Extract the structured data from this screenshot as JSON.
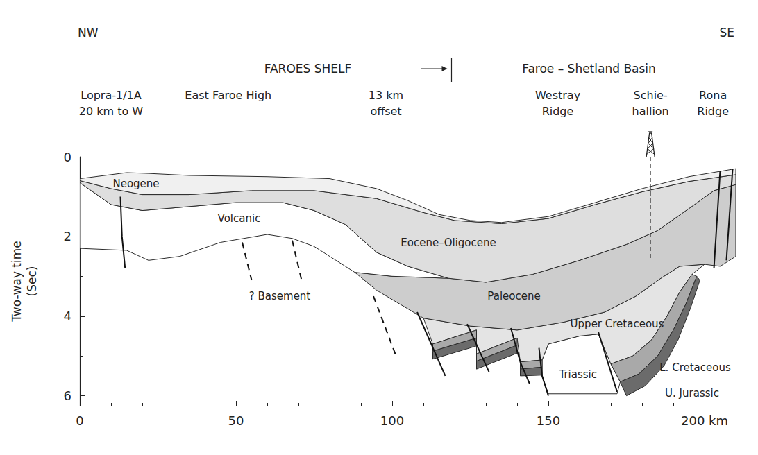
{
  "chart_data": {
    "type": "cross_section",
    "xlim": [
      0,
      210
    ],
    "xticks": [
      0,
      50,
      100,
      150,
      {
        "value": 200,
        "label": "200 km"
      }
    ],
    "ylim": [
      6.25,
      0
    ],
    "yticks": [
      0,
      2,
      4,
      6
    ],
    "ylabel": [
      "Two-way time",
      "(Sec)"
    ],
    "grid": false,
    "header": {
      "left": "NW",
      "right": "SE",
      "boundary": 119,
      "regions": [
        {
          "text": "FAROES SHELF",
          "x": 73
        },
        {
          "text": "Faroe – Shetland Basin",
          "x": 163
        }
      ],
      "localities": [
        {
          "lines": [
            "Lopra-1/1A",
            "20 km to W"
          ],
          "x": 10
        },
        {
          "lines": [
            "East Faroe High"
          ],
          "x": 47.5
        },
        {
          "lines": [
            "13 km",
            "offset"
          ],
          "x": 98
        },
        {
          "lines": [
            "Westray",
            "Ridge"
          ],
          "x": 153
        },
        {
          "lines": [
            "Schie-",
            "hallion"
          ],
          "x": 182.7
        },
        {
          "lines": [
            "Rona",
            "Ridge"
          ],
          "x": 202.7
        }
      ]
    },
    "well": {
      "x": 182.7,
      "base": 2.6
    },
    "units": [
      {
        "name": "? Basement",
        "label": {
          "x": 64,
          "y": 3.5
        },
        "polygons": []
      },
      {
        "name": "Triassic",
        "color": "#ffffff",
        "label": {
          "x": 159.5,
          "y": 5.46
        },
        "polygons": [
          [
            [
              148,
              5.1
            ],
            [
              150,
              4.7
            ],
            [
              160,
              4.5
            ],
            [
              166,
              4.45
            ],
            [
              170,
              5.2
            ],
            [
              173,
              5.65
            ],
            [
              172,
              5.95
            ],
            [
              150,
              5.95
            ],
            [
              148,
              5.5
            ]
          ]
        ]
      },
      {
        "name": "Upper Cretaceous",
        "color": "#e4e4e4",
        "label": {
          "x": 172,
          "y": 4.2
        },
        "polygons": [
          [
            [
              110,
              4.05
            ],
            [
              125,
              4.25
            ],
            [
              140,
              4.35
            ],
            [
              155,
              4.15
            ],
            [
              168,
              3.9
            ],
            [
              178,
              3.5
            ],
            [
              186,
              3.05
            ],
            [
              192,
              2.75
            ],
            [
              200,
              2.7
            ],
            [
              196,
              2.95
            ],
            [
              192,
              3.4
            ],
            [
              188,
              4.0
            ],
            [
              183,
              4.6
            ],
            [
              177,
              5.0
            ],
            [
              170,
              5.2
            ],
            [
              166,
              4.45
            ],
            [
              160,
              4.5
            ],
            [
              150,
              4.7
            ],
            [
              148,
              5.1
            ],
            [
              141,
              5.15
            ],
            [
              140,
              4.55
            ],
            [
              127,
              4.95
            ],
            [
              127,
              4.35
            ],
            [
              113,
              4.7
            ]
          ]
        ]
      },
      {
        "name": "L. Cretaceous",
        "color": "#a9a9a9",
        "label": {
          "x": 197,
          "y": 5.3
        },
        "polygons": [
          [
            [
              113,
              4.7
            ],
            [
              127,
              4.35
            ],
            [
              127,
              4.55
            ],
            [
              113,
              4.88
            ]
          ],
          [
            [
              127,
              4.95
            ],
            [
              140,
              4.55
            ],
            [
              140,
              4.73
            ],
            [
              127,
              5.13
            ]
          ],
          [
            [
              141,
              5.15
            ],
            [
              148,
              5.1
            ],
            [
              148,
              5.28
            ],
            [
              141,
              5.33
            ]
          ],
          [
            [
              170,
              5.2
            ],
            [
              177,
              5.0
            ],
            [
              183,
              4.6
            ],
            [
              188,
              4.0
            ],
            [
              192,
              3.4
            ],
            [
              196,
              2.95
            ],
            [
              197.5,
              3.0
            ],
            [
              194,
              3.7
            ],
            [
              190,
              4.35
            ],
            [
              185,
              5.0
            ],
            [
              179,
              5.45
            ],
            [
              173,
              5.65
            ]
          ]
        ]
      },
      {
        "name": "U. Jurassic",
        "color": "#6b6b6b",
        "label": {
          "x": 196,
          "y": 5.93
        },
        "polygons": [
          [
            [
              113,
              4.88
            ],
            [
              127,
              4.55
            ],
            [
              127,
              4.75
            ],
            [
              113,
              5.08
            ]
          ],
          [
            [
              127,
              5.13
            ],
            [
              140,
              4.73
            ],
            [
              140,
              4.93
            ],
            [
              127,
              5.33
            ]
          ],
          [
            [
              141,
              5.33
            ],
            [
              148,
              5.28
            ],
            [
              148,
              5.48
            ],
            [
              141,
              5.5
            ]
          ],
          [
            [
              173,
              5.65
            ],
            [
              179,
              5.45
            ],
            [
              185,
              5.0
            ],
            [
              190,
              4.35
            ],
            [
              194,
              3.7
            ],
            [
              197.5,
              3.0
            ],
            [
              198.5,
              3.1
            ],
            [
              195.5,
              3.8
            ],
            [
              191.5,
              4.6
            ],
            [
              187,
              5.25
            ],
            [
              181,
              5.75
            ],
            [
              175,
              6.0
            ]
          ]
        ]
      },
      {
        "name": "Paleocene",
        "color": "#cdcdcd",
        "label": {
          "x": 139,
          "y": 3.5
        },
        "polygons": [
          [
            [
              88,
              2.9
            ],
            [
              100,
              3.0
            ],
            [
              118,
              3.05
            ],
            [
              130,
              3.15
            ],
            [
              145,
              2.95
            ],
            [
              160,
              2.6
            ],
            [
              175,
              2.2
            ],
            [
              185,
              1.85
            ],
            [
              195,
              1.3
            ],
            [
              203,
              0.85
            ],
            [
              210,
              0.7
            ],
            [
              210,
              2.5
            ],
            [
              205,
              2.75
            ],
            [
              200,
              2.7
            ],
            [
              192,
              2.75
            ],
            [
              186,
              3.05
            ],
            [
              178,
              3.5
            ],
            [
              168,
              3.9
            ],
            [
              155,
              4.15
            ],
            [
              140,
              4.35
            ],
            [
              125,
              4.25
            ],
            [
              110,
              4.05
            ],
            [
              95,
              3.35
            ]
          ]
        ]
      },
      {
        "name": "Volcanic",
        "color": "#ffffff",
        "label": {
          "x": 51,
          "y": 1.55
        },
        "polygons": [
          [
            [
              0,
              0.65
            ],
            [
              10,
              1.2
            ],
            [
              20,
              1.35
            ],
            [
              35,
              1.25
            ],
            [
              50,
              1.15
            ],
            [
              65,
              1.15
            ],
            [
              75,
              1.35
            ],
            [
              85,
              1.7
            ],
            [
              95,
              2.4
            ],
            [
              105,
              2.75
            ],
            [
              118,
              3.05
            ],
            [
              100,
              3.0
            ],
            [
              88,
              2.9
            ],
            [
              82,
              2.6
            ],
            [
              75,
              2.25
            ],
            [
              68,
              2.05
            ],
            [
              60,
              1.95
            ],
            [
              45,
              2.15
            ],
            [
              32,
              2.5
            ],
            [
              22,
              2.6
            ],
            [
              15,
              2.35
            ],
            [
              0,
              2.3
            ]
          ]
        ]
      },
      {
        "name": "Eocene–Oligocene",
        "color": "#dedede",
        "label": {
          "x": 118,
          "y": 2.16
        },
        "polygons": [
          [
            [
              0,
              0.6
            ],
            [
              10,
              0.8
            ],
            [
              20,
              0.95
            ],
            [
              35,
              0.95
            ],
            [
              55,
              0.85
            ],
            [
              75,
              0.85
            ],
            [
              95,
              1.05
            ],
            [
              110,
              1.4
            ],
            [
              120,
              1.6
            ],
            [
              135,
              1.68
            ],
            [
              150,
              1.55
            ],
            [
              165,
              1.2
            ],
            [
              180,
              0.88
            ],
            [
              195,
              0.62
            ],
            [
              210,
              0.45
            ],
            [
              210,
              0.7
            ],
            [
              203,
              0.85
            ],
            [
              195,
              1.3
            ],
            [
              185,
              1.85
            ],
            [
              175,
              2.2
            ],
            [
              160,
              2.6
            ],
            [
              145,
              2.95
            ],
            [
              130,
              3.15
            ],
            [
              118,
              3.05
            ],
            [
              105,
              2.75
            ],
            [
              95,
              2.4
            ],
            [
              85,
              1.7
            ],
            [
              75,
              1.35
            ],
            [
              65,
              1.15
            ],
            [
              50,
              1.15
            ],
            [
              35,
              1.25
            ],
            [
              20,
              1.35
            ],
            [
              10,
              1.2
            ],
            [
              0,
              0.65
            ]
          ]
        ]
      },
      {
        "name": "Neogene",
        "color": "#f0f0f0",
        "label": {
          "x": 18,
          "y": 0.68
        },
        "polygons": [
          [
            [
              0,
              0.55
            ],
            [
              10,
              0.45
            ],
            [
              15,
              0.4
            ],
            [
              22,
              0.42
            ],
            [
              35,
              0.47
            ],
            [
              60,
              0.5
            ],
            [
              80,
              0.55
            ],
            [
              95,
              0.8
            ],
            [
              105,
              1.1
            ],
            [
              115,
              1.45
            ],
            [
              125,
              1.6
            ],
            [
              135,
              1.65
            ],
            [
              150,
              1.5
            ],
            [
              165,
              1.15
            ],
            [
              180,
              0.8
            ],
            [
              195,
              0.5
            ],
            [
              210,
              0.3
            ],
            [
              210,
              0.45
            ],
            [
              195,
              0.62
            ],
            [
              180,
              0.88
            ],
            [
              165,
              1.2
            ],
            [
              150,
              1.55
            ],
            [
              135,
              1.68
            ],
            [
              120,
              1.6
            ],
            [
              110,
              1.4
            ],
            [
              95,
              1.05
            ],
            [
              75,
              0.85
            ],
            [
              55,
              0.85
            ],
            [
              35,
              0.95
            ],
            [
              20,
              0.95
            ],
            [
              10,
              0.8
            ],
            [
              0,
              0.6
            ]
          ]
        ]
      }
    ],
    "faults": [
      {
        "line_style": "solid",
        "points": [
          [
            13,
            1.0
          ],
          [
            13.5,
            2.0
          ],
          [
            14.5,
            2.8
          ]
        ]
      },
      {
        "line_style": "dashed",
        "points": [
          [
            52,
            2.15
          ],
          [
            55,
            3.1
          ]
        ]
      },
      {
        "line_style": "dashed",
        "points": [
          [
            68,
            2.1
          ],
          [
            71,
            3.1
          ]
        ]
      },
      {
        "line_style": "dashed",
        "points": [
          [
            94,
            3.5
          ],
          [
            101,
            4.95
          ]
        ]
      },
      {
        "line_style": "solid",
        "points": [
          [
            108,
            3.9
          ],
          [
            117,
            5.5
          ]
        ]
      },
      {
        "line_style": "solid",
        "points": [
          [
            124,
            4.2
          ],
          [
            131,
            5.4
          ]
        ]
      },
      {
        "line_style": "solid",
        "points": [
          [
            138,
            4.3
          ],
          [
            141,
            5.15
          ],
          [
            144,
            5.7
          ]
        ]
      },
      {
        "line_style": "solid",
        "points": [
          [
            147,
            4.8
          ],
          [
            148,
            5.5
          ],
          [
            150,
            6.0
          ]
        ]
      },
      {
        "line_style": "solid",
        "points": [
          [
            166,
            4.4
          ],
          [
            172,
            5.9
          ]
        ]
      },
      {
        "line_style": "solid",
        "points": [
          [
            203,
            2.8
          ],
          [
            205,
            0.35
          ]
        ]
      },
      {
        "line_style": "solid",
        "points": [
          [
            207,
            2.6
          ],
          [
            209,
            0.3
          ]
        ]
      }
    ]
  }
}
